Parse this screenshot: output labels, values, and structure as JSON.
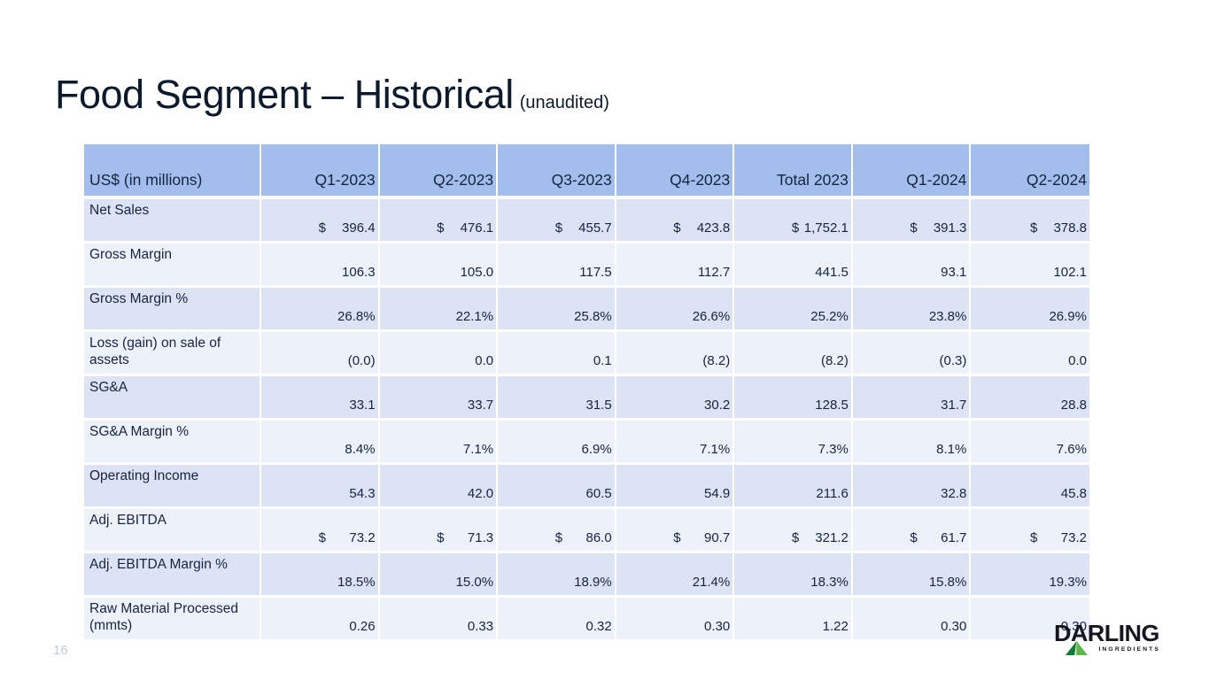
{
  "slide": {
    "title": "Food Segment – Historical",
    "title_suffix": "(unaudited)",
    "page_number": "16"
  },
  "table": {
    "columns": [
      "US$ (in millions)",
      "Q1-2023",
      "Q2-2023",
      "Q3-2023",
      "Q4-2023",
      "Total 2023",
      "Q1-2024",
      "Q2-2024"
    ],
    "rows": [
      {
        "label": "Net Sales",
        "dollar": true,
        "values": [
          "396.4",
          "476.1",
          "455.7",
          "423.8",
          "1,752.1",
          "391.3",
          "378.8"
        ]
      },
      {
        "label": "Gross Margin",
        "values": [
          "106.3",
          "105.0",
          "117.5",
          "112.7",
          "441.5",
          "93.1",
          "102.1"
        ]
      },
      {
        "label": "Gross Margin %",
        "values": [
          "26.8%",
          "22.1%",
          "25.8%",
          "26.6%",
          "25.2%",
          "23.8%",
          "26.9%"
        ]
      },
      {
        "label": "Loss (gain) on sale of assets",
        "values": [
          "(0.0)",
          "0.0",
          "0.1",
          "(8.2)",
          "(8.2)",
          "(0.3)",
          "0.0"
        ]
      },
      {
        "label": "SG&A",
        "values": [
          "33.1",
          "33.7",
          "31.5",
          "30.2",
          "128.5",
          "31.7",
          "28.8"
        ]
      },
      {
        "label": "SG&A Margin %",
        "values": [
          "8.4%",
          "7.1%",
          "6.9%",
          "7.1%",
          "7.3%",
          "8.1%",
          "7.6%"
        ]
      },
      {
        "label": "Operating Income",
        "values": [
          "54.3",
          "42.0",
          "60.5",
          "54.9",
          "211.6",
          "32.8",
          "45.8"
        ]
      },
      {
        "label": "Adj. EBITDA",
        "dollar": true,
        "values": [
          "73.2",
          "71.3",
          "86.0",
          "90.7",
          "321.2",
          "61.7",
          "73.2"
        ]
      },
      {
        "label": "Adj. EBITDA Margin %",
        "values": [
          "18.5%",
          "15.0%",
          "18.9%",
          "21.4%",
          "18.3%",
          "15.8%",
          "19.3%"
        ]
      },
      {
        "label": "Raw Material Processed (mmts)",
        "values": [
          "0.26",
          "0.33",
          "0.32",
          "0.30",
          "1.22",
          "0.30",
          "0.30"
        ]
      }
    ],
    "dollar_symbol": "$"
  },
  "logo": {
    "brand": "DARLING",
    "sub": "INGREDIENTS"
  },
  "colors": {
    "title": "#0d1a2b",
    "text": "#16243e",
    "header_bg": "#a3beec",
    "row_odd": "#dce3f5",
    "row_even": "#edf1fa",
    "page_num": "#c3c9d8",
    "logo_dark": "#16161f",
    "logo_green_dark": "#157a36",
    "logo_green_light": "#5cb949"
  }
}
